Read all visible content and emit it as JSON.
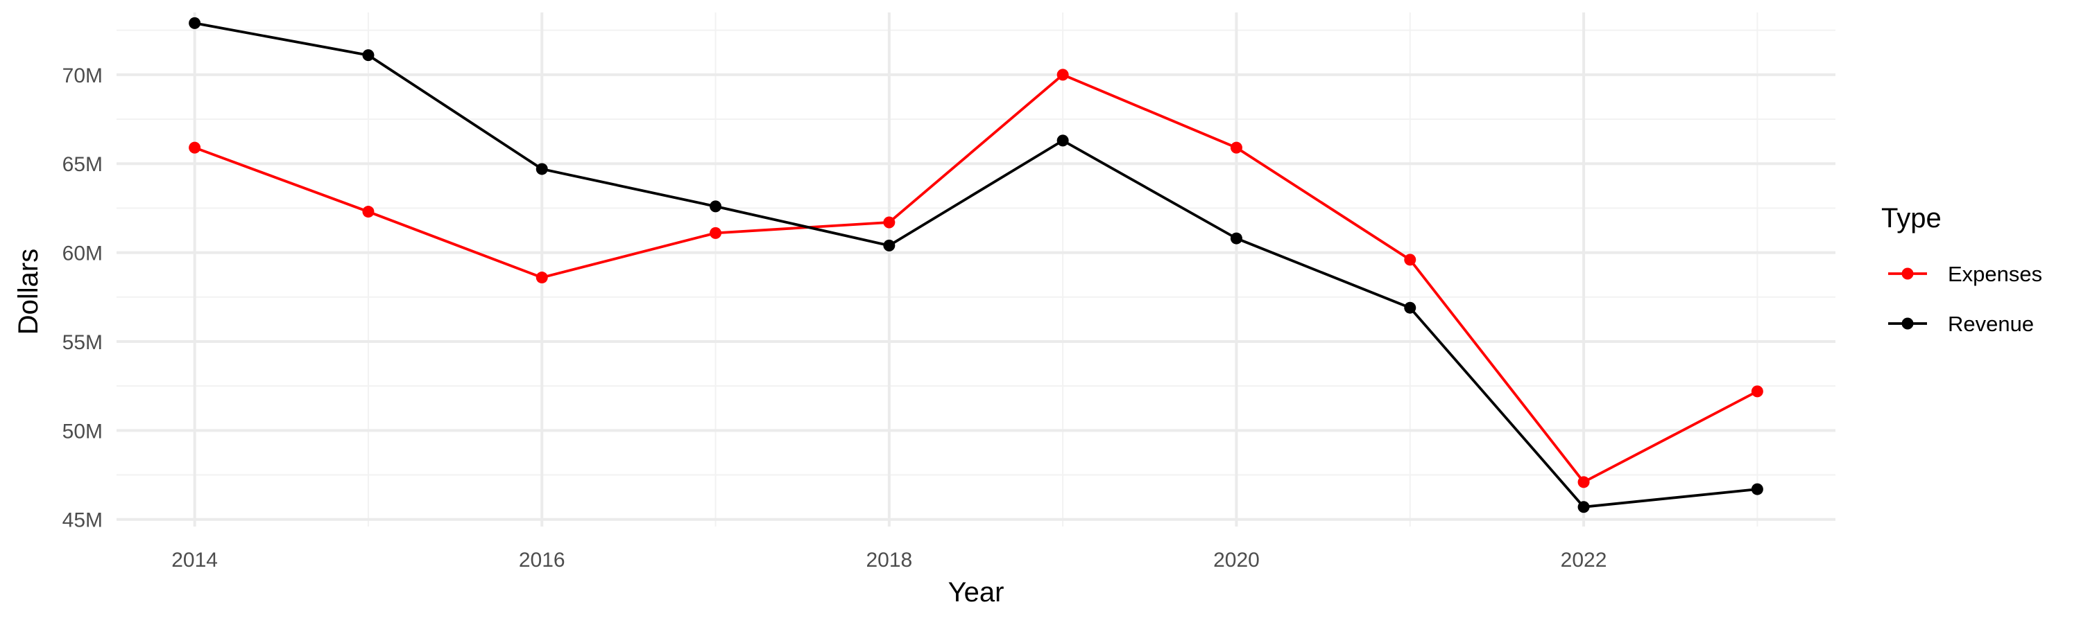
{
  "chart_data": {
    "type": "line",
    "title": "",
    "xlabel": "Year",
    "ylabel": "Dollars",
    "x": [
      2014,
      2015,
      2016,
      2017,
      2018,
      2019,
      2020,
      2021,
      2022,
      2023
    ],
    "x_ticks": [
      2014,
      2016,
      2018,
      2020,
      2022
    ],
    "x_tick_labels": [
      "2014",
      "2016",
      "2018",
      "2020",
      "2022"
    ],
    "xlim": [
      2013.55,
      2023.45
    ],
    "y_ticks": [
      45000000,
      50000000,
      55000000,
      60000000,
      65000000,
      70000000
    ],
    "y_tick_labels": [
      "45M",
      "50M",
      "55M",
      "60M",
      "65M",
      "70M"
    ],
    "ylim": [
      44600000,
      73500000
    ],
    "grid": true,
    "legend": {
      "title": "Type",
      "position": "right"
    },
    "series": [
      {
        "name": "Expenses",
        "color": "#ff0000",
        "values": [
          65900000,
          62300000,
          58600000,
          61100000,
          61700000,
          70000000,
          65900000,
          59600000,
          47100000,
          52200000
        ]
      },
      {
        "name": "Revenue",
        "color": "#000000",
        "values": [
          72900000,
          71100000,
          64700000,
          62600000,
          60400000,
          66300000,
          60800000,
          56900000,
          45700000,
          46700000
        ]
      }
    ]
  }
}
